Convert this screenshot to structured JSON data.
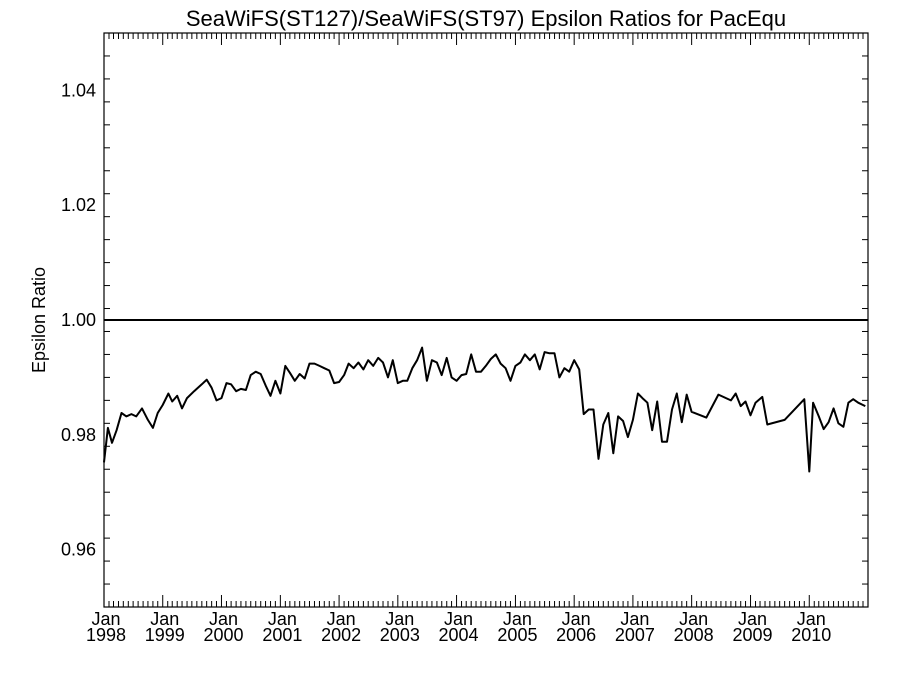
{
  "chart_data": {
    "type": "line",
    "title": "SeaWiFS(ST127)/SeaWiFS(ST97)  Epsilon Ratios for PacEqu",
    "xlabel": "",
    "ylabel": "Epsilon Ratio",
    "xlim": [
      "1998-01-01",
      "2011-01-01"
    ],
    "ylim": [
      0.95,
      1.05
    ],
    "y_ticks": [
      "0.96",
      "0.98",
      "1.00",
      "1.02",
      "1.04"
    ],
    "x_tick_labels": [
      {
        "month": "Jan",
        "year": "1998",
        "date": "1998-01-01"
      },
      {
        "month": "Jan",
        "year": "1999",
        "date": "1999-01-01"
      },
      {
        "month": "Jan",
        "year": "2000",
        "date": "2000-01-01"
      },
      {
        "month": "Jan",
        "year": "2001",
        "date": "2001-01-01"
      },
      {
        "month": "Jan",
        "year": "2002",
        "date": "2002-01-01"
      },
      {
        "month": "Jan",
        "year": "2003",
        "date": "2003-01-01"
      },
      {
        "month": "Jan",
        "year": "2004",
        "date": "2004-01-01"
      },
      {
        "month": "Jan",
        "year": "2005",
        "date": "2005-01-01"
      },
      {
        "month": "Jan",
        "year": "2006",
        "date": "2006-01-01"
      },
      {
        "month": "Jan",
        "year": "2007",
        "date": "2007-01-01"
      },
      {
        "month": "Jan",
        "year": "2008",
        "date": "2008-01-01"
      },
      {
        "month": "Jan",
        "year": "2009",
        "date": "2009-01-01"
      },
      {
        "month": "Jan",
        "year": "2010",
        "date": "2010-01-01"
      }
    ],
    "reference_line": 1.0,
    "grid": false,
    "series": [
      {
        "color": "#000000",
        "points": [
          [
            "1998-01-01",
            0.9752
          ],
          [
            "1998-01-25",
            0.9812
          ],
          [
            "1998-02-20",
            0.9786
          ],
          [
            "1998-03-20",
            0.9808
          ],
          [
            "1998-04-20",
            0.9838
          ],
          [
            "1998-05-20",
            0.9832
          ],
          [
            "1998-06-20",
            0.9836
          ],
          [
            "1998-07-20",
            0.9832
          ],
          [
            "1998-08-25",
            0.9846
          ],
          [
            "1998-10-01",
            0.9826
          ],
          [
            "1998-11-01",
            0.9812
          ],
          [
            "1998-12-01",
            0.9838
          ],
          [
            "1999-01-01",
            0.9852
          ],
          [
            "1999-02-05",
            0.9872
          ],
          [
            "1999-03-01",
            0.9858
          ],
          [
            "1999-04-01",
            0.9868
          ],
          [
            "1999-05-01",
            0.9846
          ],
          [
            "1999-06-01",
            0.9864
          ],
          [
            "1999-07-15",
            0.9876
          ],
          [
            "1999-09-01",
            0.9888
          ],
          [
            "1999-10-01",
            0.9896
          ],
          [
            "1999-11-01",
            0.9882
          ],
          [
            "1999-12-01",
            0.986
          ],
          [
            "2000-01-01",
            0.9864
          ],
          [
            "2000-02-01",
            0.989
          ],
          [
            "2000-03-01",
            0.9888
          ],
          [
            "2000-04-01",
            0.9876
          ],
          [
            "2000-05-01",
            0.988
          ],
          [
            "2000-06-01",
            0.9878
          ],
          [
            "2000-07-01",
            0.9904
          ],
          [
            "2000-08-01",
            0.991
          ],
          [
            "2000-09-01",
            0.9906
          ],
          [
            "2000-10-01",
            0.9886
          ],
          [
            "2000-11-01",
            0.9868
          ],
          [
            "2000-12-01",
            0.9894
          ],
          [
            "2001-01-01",
            0.9872
          ],
          [
            "2001-02-01",
            0.992
          ],
          [
            "2001-03-01",
            0.9908
          ],
          [
            "2001-04-01",
            0.9894
          ],
          [
            "2001-05-01",
            0.9906
          ],
          [
            "2001-06-01",
            0.9898
          ],
          [
            "2001-07-01",
            0.9924
          ],
          [
            "2001-08-01",
            0.9924
          ],
          [
            "2001-09-01",
            0.992
          ],
          [
            "2001-10-01",
            0.9916
          ],
          [
            "2001-11-01",
            0.9912
          ],
          [
            "2001-12-01",
            0.989
          ],
          [
            "2002-01-01",
            0.9892
          ],
          [
            "2002-02-01",
            0.9904
          ],
          [
            "2002-03-01",
            0.9924
          ],
          [
            "2002-04-01",
            0.9916
          ],
          [
            "2002-05-01",
            0.9926
          ],
          [
            "2002-06-01",
            0.9914
          ],
          [
            "2002-07-01",
            0.993
          ],
          [
            "2002-08-01",
            0.992
          ],
          [
            "2002-09-01",
            0.9934
          ],
          [
            "2002-10-01",
            0.9926
          ],
          [
            "2002-11-01",
            0.99
          ],
          [
            "2002-12-01",
            0.993
          ],
          [
            "2003-01-01",
            0.989
          ],
          [
            "2003-02-01",
            0.9894
          ],
          [
            "2003-03-01",
            0.9894
          ],
          [
            "2003-04-01",
            0.9916
          ],
          [
            "2003-05-01",
            0.993
          ],
          [
            "2003-06-01",
            0.9952
          ],
          [
            "2003-07-01",
            0.9894
          ],
          [
            "2003-08-01",
            0.993
          ],
          [
            "2003-09-01",
            0.9926
          ],
          [
            "2003-10-01",
            0.9904
          ],
          [
            "2003-11-01",
            0.9934
          ],
          [
            "2003-12-01",
            0.99
          ],
          [
            "2004-01-01",
            0.9894
          ],
          [
            "2004-02-01",
            0.9904
          ],
          [
            "2004-03-01",
            0.9906
          ],
          [
            "2004-04-01",
            0.994
          ],
          [
            "2004-05-01",
            0.991
          ],
          [
            "2004-06-01",
            0.991
          ],
          [
            "2004-07-01",
            0.992
          ],
          [
            "2004-08-01",
            0.9932
          ],
          [
            "2004-09-01",
            0.994
          ],
          [
            "2004-10-01",
            0.9924
          ],
          [
            "2004-11-01",
            0.9916
          ],
          [
            "2004-12-01",
            0.9894
          ],
          [
            "2005-01-01",
            0.992
          ],
          [
            "2005-02-01",
            0.9926
          ],
          [
            "2005-03-01",
            0.994
          ],
          [
            "2005-04-01",
            0.993
          ],
          [
            "2005-05-01",
            0.994
          ],
          [
            "2005-06-01",
            0.9914
          ],
          [
            "2005-07-01",
            0.9944
          ],
          [
            "2005-08-01",
            0.9942
          ],
          [
            "2005-09-01",
            0.9942
          ],
          [
            "2005-10-01",
            0.99
          ],
          [
            "2005-11-01",
            0.9916
          ],
          [
            "2005-12-01",
            0.991
          ],
          [
            "2006-01-01",
            0.993
          ],
          [
            "2006-02-01",
            0.9914
          ],
          [
            "2006-03-01",
            0.9836
          ],
          [
            "2006-04-01",
            0.9844
          ],
          [
            "2006-05-01",
            0.9844
          ],
          [
            "2006-06-01",
            0.9758
          ],
          [
            "2006-07-01",
            0.9818
          ],
          [
            "2006-08-01",
            0.9838
          ],
          [
            "2006-09-01",
            0.9768
          ],
          [
            "2006-10-01",
            0.9832
          ],
          [
            "2006-11-01",
            0.9824
          ],
          [
            "2006-12-01",
            0.9796
          ],
          [
            "2007-01-01",
            0.9826
          ],
          [
            "2007-02-01",
            0.9872
          ],
          [
            "2007-03-01",
            0.9864
          ],
          [
            "2007-04-01",
            0.9856
          ],
          [
            "2007-05-01",
            0.9808
          ],
          [
            "2007-06-01",
            0.9858
          ],
          [
            "2007-07-01",
            0.9788
          ],
          [
            "2007-08-01",
            0.9788
          ],
          [
            "2007-09-01",
            0.9844
          ],
          [
            "2007-10-01",
            0.9872
          ],
          [
            "2007-11-01",
            0.9822
          ],
          [
            "2007-12-01",
            0.987
          ],
          [
            "2008-01-01",
            0.984
          ],
          [
            "2008-04-01",
            0.983
          ],
          [
            "2008-06-15",
            0.987
          ],
          [
            "2008-09-01",
            0.986
          ],
          [
            "2008-10-01",
            0.9872
          ],
          [
            "2008-11-01",
            0.985
          ],
          [
            "2008-12-01",
            0.9858
          ],
          [
            "2009-01-01",
            0.9834
          ],
          [
            "2009-02-01",
            0.9856
          ],
          [
            "2009-03-15",
            0.9866
          ],
          [
            "2009-04-15",
            0.9818
          ],
          [
            "2009-08-01",
            0.9826
          ],
          [
            "2009-12-01",
            0.9862
          ],
          [
            "2010-01-01",
            0.9736
          ],
          [
            "2010-01-25",
            0.9856
          ],
          [
            "2010-03-01",
            0.9832
          ],
          [
            "2010-04-01",
            0.981
          ],
          [
            "2010-05-01",
            0.9822
          ],
          [
            "2010-06-01",
            0.9846
          ],
          [
            "2010-07-01",
            0.982
          ],
          [
            "2010-08-01",
            0.9814
          ],
          [
            "2010-09-01",
            0.9856
          ],
          [
            "2010-10-01",
            0.9862
          ],
          [
            "2010-11-01",
            0.9856
          ],
          [
            "2010-12-15",
            0.985
          ]
        ]
      }
    ]
  }
}
